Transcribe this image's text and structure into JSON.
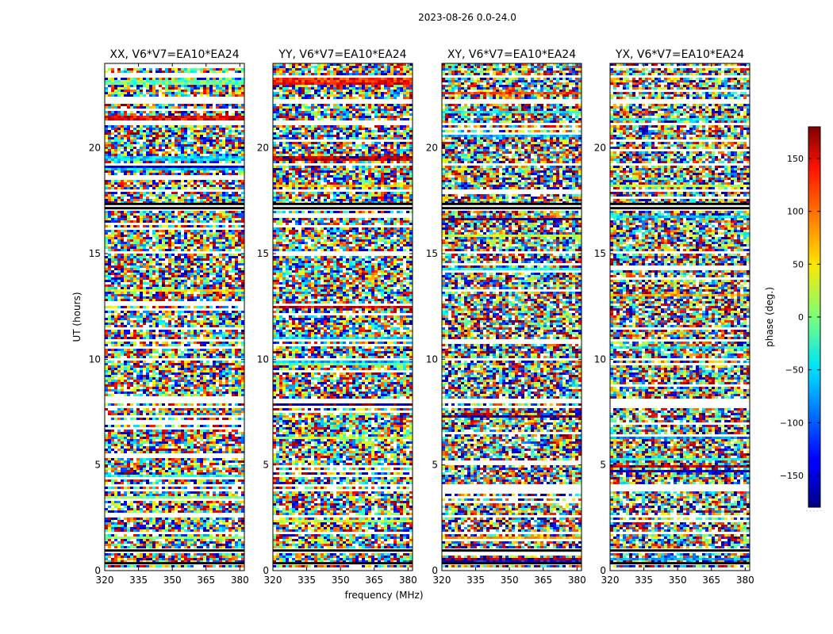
{
  "chart_data": {
    "type": "heatmap",
    "title": "2023-08-26 0.0-24.0",
    "xlabel": "frequency (MHz)",
    "ylabel": "UT (hours)",
    "xlim": [
      320,
      382
    ],
    "ylim": [
      0,
      24
    ],
    "xticks": [
      320,
      335,
      350,
      365,
      380
    ],
    "yticks": [
      0,
      5,
      10,
      15,
      20
    ],
    "colormap": "jet",
    "colorbar": {
      "label": "phase (deg.)",
      "range": [
        -180,
        180
      ],
      "ticks": [
        -150,
        -100,
        -50,
        0,
        50,
        100,
        150
      ],
      "legend_position": "right"
    },
    "panels": [
      {
        "title": "XX, V6*V7=EA10*EA24",
        "polarization": "XX"
      },
      {
        "title": "YY, V6*V7=EA10*EA24",
        "polarization": "YY"
      },
      {
        "title": "XY, V6*V7=EA10*EA24",
        "polarization": "XY"
      },
      {
        "title": "YX, V6*V7=EA10*EA24",
        "polarization": "YX"
      }
    ],
    "gap_rows_hours": [
      0.1,
      0.35,
      0.9,
      1.0,
      1.75,
      2.6,
      3.8,
      4.05,
      7.75,
      7.95,
      8.1,
      9.95,
      10.85,
      15.1,
      17.05,
      17.2,
      17.35,
      18.0,
      19.2,
      21.1,
      22.2,
      23.35
    ],
    "coherent_bands": [
      {
        "panel": "XX",
        "hours": [
          23.0,
          23.2
        ],
        "phase": -10
      },
      {
        "panel": "XX",
        "hours": [
          21.3,
          21.5
        ],
        "phase": 140
      },
      {
        "panel": "XX",
        "hours": [
          19.4,
          19.6
        ],
        "phase": -60
      },
      {
        "panel": "XX",
        "hours": [
          9.9,
          10.1
        ],
        "phase": -170
      },
      {
        "panel": "YY",
        "hours": [
          23.05,
          23.3
        ],
        "phase": 120
      },
      {
        "panel": "YY",
        "hours": [
          19.4,
          19.6
        ],
        "phase": 160
      },
      {
        "panel": "YY",
        "hours": [
          9.85,
          10.05
        ],
        "phase": -70
      }
    ]
  }
}
